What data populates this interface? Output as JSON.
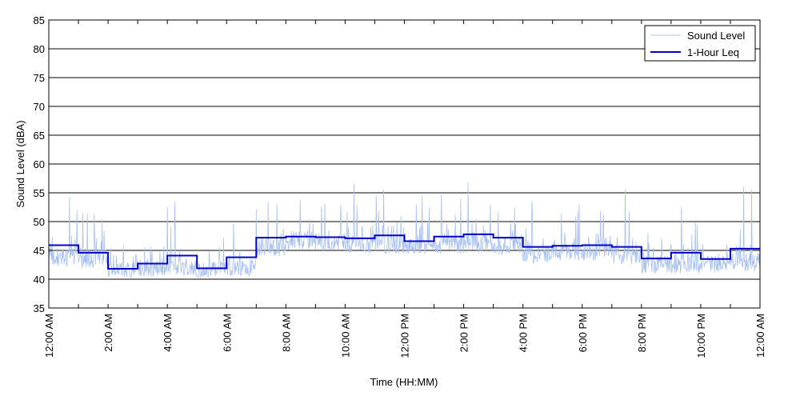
{
  "chart_data": {
    "type": "line",
    "xlabel": "Time (HH:MM)",
    "ylabel": "Sound Level (dBA)",
    "xlim": [
      0,
      24
    ],
    "ylim": [
      35,
      85
    ],
    "y_ticks": [
      35,
      40,
      45,
      50,
      55,
      60,
      65,
      70,
      75,
      80,
      85
    ],
    "x_tick_labels": [
      "12:00 AM",
      "2:00 AM",
      "4:00 AM",
      "6:00 AM",
      "8:00 AM",
      "10:00 AM",
      "12:00 PM",
      "2:00 PM",
      "4:00 PM",
      "6:00 PM",
      "8:00 PM",
      "10:00 PM",
      "12:00 AM"
    ],
    "x_tick_hours": [
      0,
      2,
      4,
      6,
      8,
      10,
      12,
      14,
      16,
      18,
      20,
      22,
      24
    ],
    "grid": "horizontal",
    "legend": {
      "position": "top-right",
      "entries": [
        "Sound Level",
        "1-Hour Leq"
      ]
    },
    "series": [
      {
        "name": "1-Hour Leq",
        "color": "#0000cc",
        "step": "hourly",
        "hours": [
          0,
          1,
          2,
          3,
          4,
          5,
          6,
          7,
          8,
          9,
          10,
          11,
          12,
          13,
          14,
          15,
          16,
          17,
          18,
          19,
          20,
          21,
          22,
          23
        ],
        "values": [
          45.9,
          44.6,
          41.8,
          42.7,
          44.1,
          41.9,
          43.8,
          47.2,
          47.4,
          47.3,
          47.1,
          47.6,
          46.6,
          47.4,
          47.8,
          47.2,
          45.6,
          45.8,
          45.9,
          45.6,
          43.6,
          44.6,
          43.5,
          45.3
        ]
      },
      {
        "name": "Sound Level",
        "color": "#a8c0f0",
        "hourly_typical": [
          43.8,
          43.5,
          41.5,
          42.0,
          42.3,
          41.5,
          42.0,
          45.5,
          46.8,
          46.5,
          46.0,
          46.0,
          45.5,
          46.0,
          46.2,
          45.8,
          44.2,
          44.8,
          44.8,
          44.2,
          42.5,
          42.5,
          42.8,
          43.0
        ],
        "peaks": [
          {
            "hour": 0.7,
            "value": 54.4
          },
          {
            "hour": 0.95,
            "value": 52.0
          },
          {
            "hour": 1.15,
            "value": 51.5
          },
          {
            "hour": 4.0,
            "value": 52.5
          },
          {
            "hour": 4.25,
            "value": 53.5
          },
          {
            "hour": 7.4,
            "value": 53.5
          },
          {
            "hour": 7.7,
            "value": 53.0
          },
          {
            "hour": 9.2,
            "value": 52.5
          },
          {
            "hour": 10.3,
            "value": 56.5
          },
          {
            "hour": 11.05,
            "value": 54.5
          },
          {
            "hour": 11.3,
            "value": 55.5
          },
          {
            "hour": 12.6,
            "value": 54.5
          },
          {
            "hour": 13.25,
            "value": 55.0
          },
          {
            "hour": 13.9,
            "value": 54.0
          },
          {
            "hour": 14.15,
            "value": 56.8
          },
          {
            "hour": 14.9,
            "value": 53.0
          },
          {
            "hour": 16.3,
            "value": 53.5
          },
          {
            "hour": 17.9,
            "value": 53.0
          },
          {
            "hour": 19.45,
            "value": 55.5
          },
          {
            "hour": 21.35,
            "value": 52.5
          },
          {
            "hour": 23.45,
            "value": 56.0
          },
          {
            "hour": 23.72,
            "value": 55.5
          }
        ]
      }
    ]
  }
}
